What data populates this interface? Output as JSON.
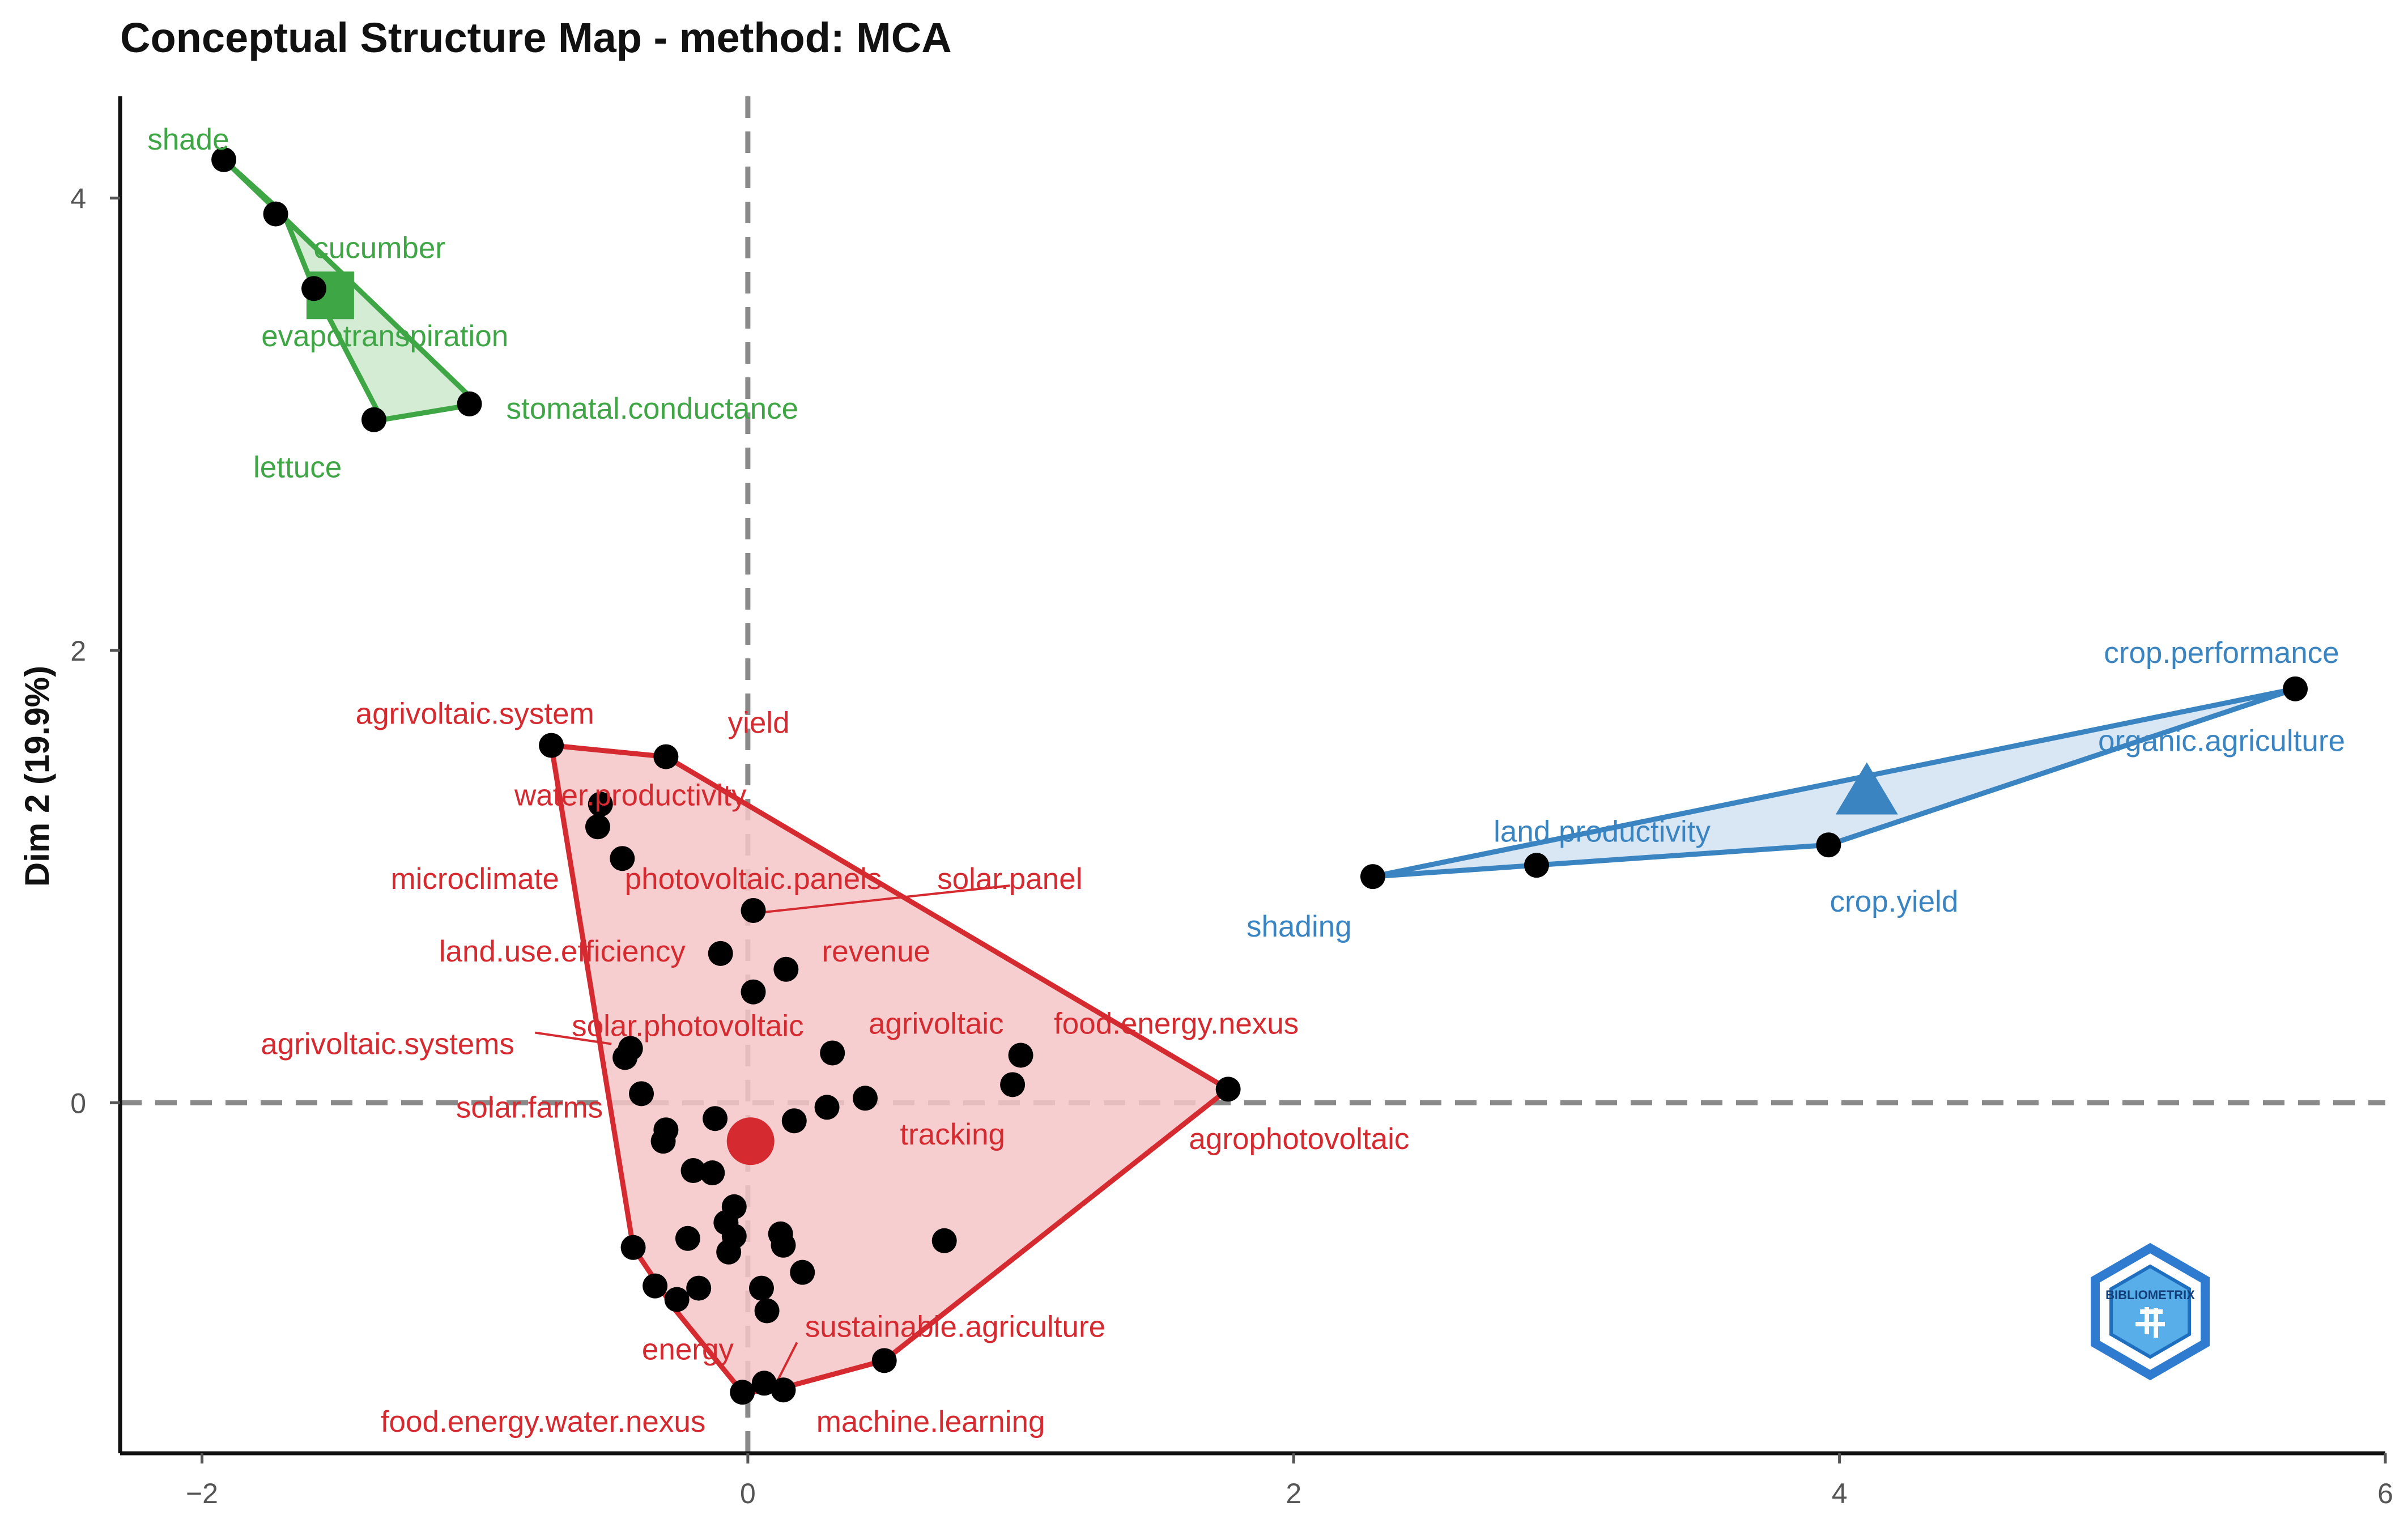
{
  "chart_data": {
    "type": "scatter",
    "title": "Conceptual Structure Map - method: MCA",
    "xlabel": "",
    "ylabel": "Dim 2 (19.9%)",
    "xlim": [
      -2.3,
      6.0
    ],
    "ylim": [
      -1.55,
      4.45
    ],
    "x_ticks": [
      {
        "value": -2,
        "label": "−2"
      },
      {
        "value": 0,
        "label": "0"
      },
      {
        "value": 2,
        "label": "2"
      },
      {
        "value": 4,
        "label": "4"
      },
      {
        "value": 6,
        "label": "6"
      }
    ],
    "y_ticks": [
      {
        "value": 0,
        "label": "0"
      },
      {
        "value": 2,
        "label": "2"
      },
      {
        "value": 4,
        "label": "4"
      }
    ],
    "reference_lines": {
      "x": 0,
      "y": 0
    },
    "clusters": [
      {
        "name": "cluster-1",
        "color": "#d42a30",
        "fill": "#f4c5c7",
        "centroid": {
          "x": 0.01,
          "y": -0.17,
          "shape": "circle"
        },
        "hull": [
          [
            -0.72,
            1.58
          ],
          [
            -0.3,
            1.53
          ],
          [
            1.76,
            0.06
          ],
          [
            0.5,
            -1.14
          ],
          [
            0.1,
            -1.27
          ],
          [
            -0.02,
            -1.28
          ],
          [
            -0.27,
            -0.91
          ],
          [
            -0.42,
            -0.64
          ]
        ],
        "points": [
          [
            -0.72,
            1.58
          ],
          [
            -0.3,
            1.53
          ],
          [
            -0.54,
            1.32
          ],
          [
            -0.55,
            1.22
          ],
          [
            -0.46,
            1.08
          ],
          [
            0.02,
            0.85
          ],
          [
            -0.1,
            0.66
          ],
          [
            0.14,
            0.59
          ],
          [
            0.02,
            0.49
          ],
          [
            0.31,
            0.22
          ],
          [
            1.0,
            0.21
          ],
          [
            0.97,
            0.08
          ],
          [
            0.43,
            0.02
          ],
          [
            0.29,
            -0.02
          ],
          [
            0.17,
            -0.08
          ],
          [
            1.76,
            0.06
          ],
          [
            -0.45,
            0.2
          ],
          [
            -0.43,
            0.24
          ],
          [
            -0.39,
            0.04
          ],
          [
            -0.3,
            -0.12
          ],
          [
            -0.31,
            -0.17
          ],
          [
            -0.12,
            -0.07
          ],
          [
            -0.2,
            -0.3
          ],
          [
            -0.13,
            -0.31
          ],
          [
            -0.05,
            -0.46
          ],
          [
            -0.08,
            -0.53
          ],
          [
            -0.05,
            -0.59
          ],
          [
            -0.07,
            -0.66
          ],
          [
            0.12,
            -0.58
          ],
          [
            0.13,
            -0.63
          ],
          [
            0.2,
            -0.75
          ],
          [
            -0.22,
            -0.6
          ],
          [
            -0.42,
            -0.64
          ],
          [
            0.72,
            -0.61
          ],
          [
            -0.34,
            -0.81
          ],
          [
            -0.26,
            -0.87
          ],
          [
            -0.18,
            -0.82
          ],
          [
            0.05,
            -0.82
          ],
          [
            0.07,
            -0.92
          ],
          [
            0.5,
            -1.14
          ],
          [
            0.06,
            -1.24
          ],
          [
            0.13,
            -1.27
          ],
          [
            -0.02,
            -1.28
          ]
        ],
        "labels": [
          {
            "text": "agrivoltaic.system",
            "x": -1.0,
            "y": 1.72
          },
          {
            "text": "yield",
            "x": 0.04,
            "y": 1.68
          },
          {
            "text": "water.productivity",
            "x": -0.43,
            "y": 1.36
          },
          {
            "text": "microclimate",
            "x": -1.0,
            "y": 0.99
          },
          {
            "text": "photovoltaic.panels",
            "x": 0.02,
            "y": 0.99
          },
          {
            "text": "solar.panel",
            "x": 0.96,
            "y": 0.99
          },
          {
            "text": "land.use.efficiency",
            "x": -0.68,
            "y": 0.67
          },
          {
            "text": "revenue",
            "x": 0.47,
            "y": 0.67
          },
          {
            "text": "solar.photovoltaic",
            "x": -0.22,
            "y": 0.34
          },
          {
            "text": "agrivoltaic",
            "x": 0.69,
            "y": 0.35
          },
          {
            "text": "agrivoltaic.systems",
            "x": -1.32,
            "y": 0.26
          },
          {
            "text": "food.energy.nexus",
            "x": 1.57,
            "y": 0.35
          },
          {
            "text": "solar.farms",
            "x": -0.8,
            "y": -0.02
          },
          {
            "text": "tracking",
            "x": 0.75,
            "y": -0.14
          },
          {
            "text": "agrophotovoltaic",
            "x": 2.02,
            "y": -0.16
          },
          {
            "text": "sustainable.agriculture",
            "x": 0.76,
            "y": -0.99
          },
          {
            "text": "energy",
            "x": -0.22,
            "y": -1.09
          },
          {
            "text": "food.energy.water.nexus",
            "x": -0.75,
            "y": -1.41
          },
          {
            "text": "machine.learning",
            "x": 0.67,
            "y": -1.41
          }
        ]
      },
      {
        "name": "cluster-2",
        "color": "#3a84c1",
        "fill": "#d2e2f1",
        "centroid": {
          "x": 4.1,
          "y": 1.38,
          "shape": "triangle"
        },
        "hull": [
          [
            2.29,
            1.0
          ],
          [
            5.67,
            1.83
          ],
          [
            3.96,
            1.14
          ]
        ],
        "points": [
          [
            2.29,
            1.0
          ],
          [
            2.89,
            1.05
          ],
          [
            3.96,
            1.14
          ],
          [
            5.67,
            1.83
          ]
        ],
        "labels": [
          {
            "text": "crop.performance",
            "x": 5.4,
            "y": 1.99
          },
          {
            "text": "organic.agriculture",
            "x": 5.4,
            "y": 1.6
          },
          {
            "text": "land.productivity",
            "x": 3.13,
            "y": 1.2
          },
          {
            "text": "shading",
            "x": 2.02,
            "y": 0.78
          },
          {
            "text": "crop.yield",
            "x": 4.2,
            "y": 0.89
          }
        ]
      },
      {
        "name": "cluster-3",
        "color": "#3fa645",
        "fill": "#cde8cc",
        "centroid": {
          "x": -1.53,
          "y": 3.57,
          "shape": "square"
        },
        "hull": [
          [
            -1.92,
            4.17
          ],
          [
            -1.7,
            3.93
          ],
          [
            -1.59,
            3.6
          ],
          [
            -1.34,
            3.02
          ],
          [
            -0.99,
            3.09
          ]
        ],
        "points": [
          [
            -1.92,
            4.17
          ],
          [
            -1.73,
            3.93
          ],
          [
            -1.59,
            3.6
          ],
          [
            -1.37,
            3.02
          ],
          [
            -1.02,
            3.09
          ]
        ],
        "labels": [
          {
            "text": "shade",
            "x": -2.05,
            "y": 4.26
          },
          {
            "text": "cucumber",
            "x": -1.35,
            "y": 3.78
          },
          {
            "text": "evapotranspiration",
            "x": -1.33,
            "y": 3.39
          },
          {
            "text": "stomatal.conductance",
            "x": -0.35,
            "y": 3.07
          },
          {
            "text": "lettuce",
            "x": -1.65,
            "y": 2.81
          }
        ]
      }
    ],
    "leader_lines": [
      {
        "cluster": 0,
        "from": [
          0.96,
          0.96
        ],
        "to": [
          0.04,
          0.84
        ]
      },
      {
        "cluster": 0,
        "from": [
          -0.78,
          0.31
        ],
        "to": [
          -0.5,
          0.26
        ]
      },
      {
        "cluster": 0,
        "from": [
          0.18,
          -1.06
        ],
        "to": [
          0.1,
          -1.25
        ]
      }
    ]
  },
  "logo": {
    "name": "biblioshiny-logo",
    "text": "BIBLIOMETRIX"
  }
}
